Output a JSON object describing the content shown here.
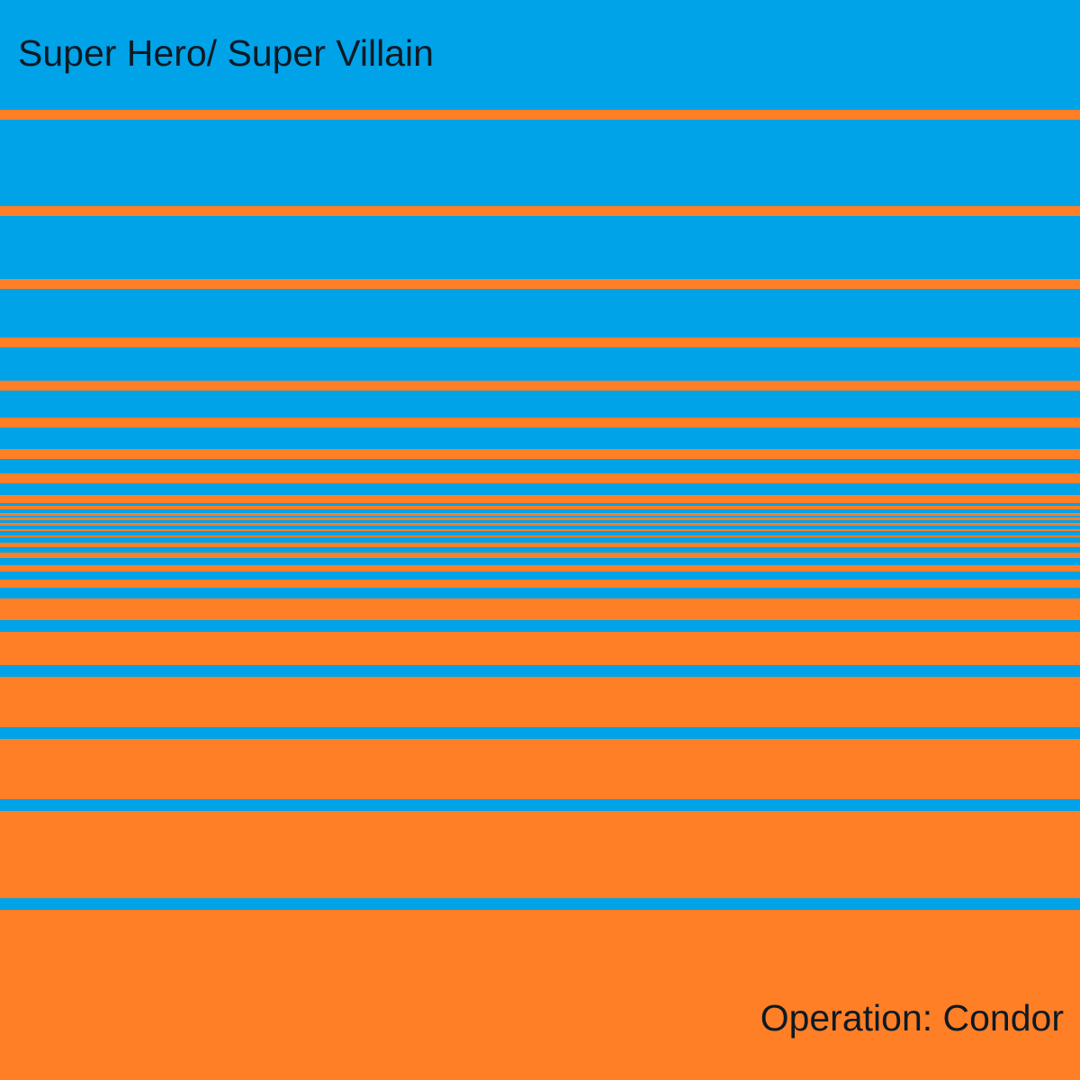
{
  "cover": {
    "title": "Super Hero/ Super Villain",
    "subtitle": "Operation: Condor",
    "colors": {
      "blue": "#00a2e8",
      "orange": "#ff7f27",
      "text": "#0d1a24"
    }
  }
}
